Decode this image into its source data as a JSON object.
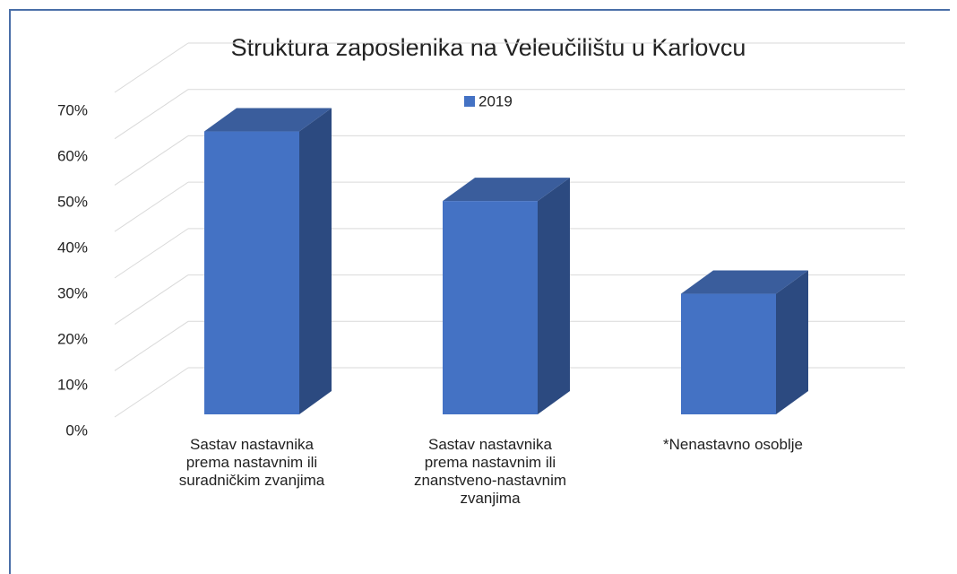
{
  "chart_data": {
    "type": "bar3d",
    "title": "Struktura zaposlenika  na Veleučilištu u Karlovcu",
    "categories": [
      "Sastav nastavnika prema nastavnim ili suradničkim zvanjima",
      "Sastav nastavnika prema nastavnim ili znanstveno-nastavnim zvanjima",
      "*Nenastavno osoblje"
    ],
    "series": [
      {
        "name": "2019",
        "color": "#4472c4",
        "values": [
          61,
          46,
          26
        ]
      }
    ],
    "ylim": [
      0,
      70
    ],
    "yticks": [
      {
        "value": 0,
        "label": "0%"
      },
      {
        "value": 10,
        "label": "10%"
      },
      {
        "value": 20,
        "label": "20%"
      },
      {
        "value": 30,
        "label": "30%"
      },
      {
        "value": 40,
        "label": "40%"
      },
      {
        "value": 50,
        "label": "50%"
      },
      {
        "value": 60,
        "label": "60%"
      },
      {
        "value": 70,
        "label": "70%"
      }
    ],
    "grid": true,
    "legend": "top"
  }
}
